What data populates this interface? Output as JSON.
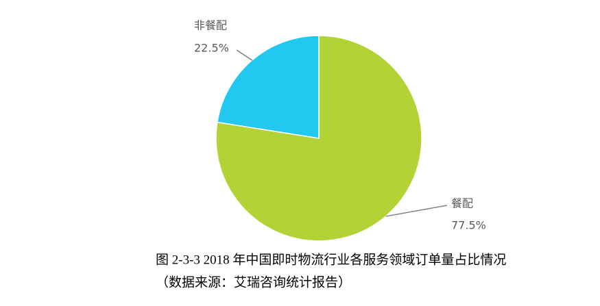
{
  "chart_data": {
    "type": "pie",
    "categories": [
      "餐配",
      "非餐配"
    ],
    "values": [
      77.5,
      22.5
    ],
    "value_labels": [
      "77.5%",
      "22.5%"
    ],
    "colors": [
      "#b2d235",
      "#22c8f0"
    ],
    "caption": "图 2-3-3 2018 年中国即时物流行业各服务领域订单量占比情况",
    "source": "（数据来源：艾瑞咨询统计报告）"
  }
}
